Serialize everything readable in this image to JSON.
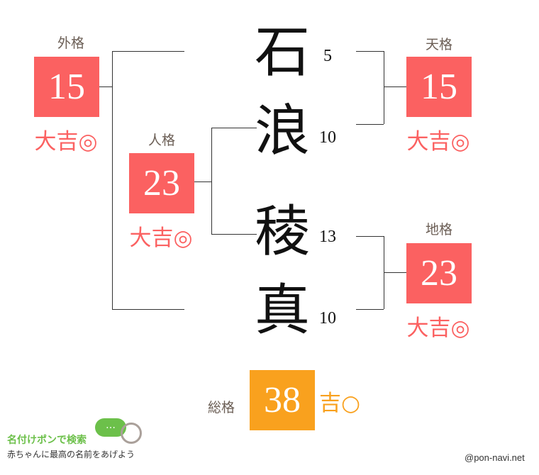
{
  "name_chars": [
    {
      "char": "石",
      "strokes": "5"
    },
    {
      "char": "浪",
      "strokes": "10"
    },
    {
      "char": "稜",
      "strokes": "13"
    },
    {
      "char": "真",
      "strokes": "10"
    }
  ],
  "gaikaku": {
    "label": "外格",
    "value": "15",
    "fortune": "大吉◎"
  },
  "jinkaku": {
    "label": "人格",
    "value": "23",
    "fortune": "大吉◎"
  },
  "tenkaku": {
    "label": "天格",
    "value": "15",
    "fortune": "大吉◎"
  },
  "chikaku": {
    "label": "地格",
    "value": "23",
    "fortune": "大吉◎"
  },
  "soukaku": {
    "label": "総格",
    "value": "38",
    "fortune": "吉○"
  },
  "logo": {
    "title": "名付けポンで検索",
    "tagline": "赤ちゃんに最高の名前をあげよう",
    "bubble": "…"
  },
  "credit": "@pon-navi.net",
  "colors": {
    "great": "#fb6161",
    "good": "#f9a11e",
    "label": "#6b5e55"
  }
}
